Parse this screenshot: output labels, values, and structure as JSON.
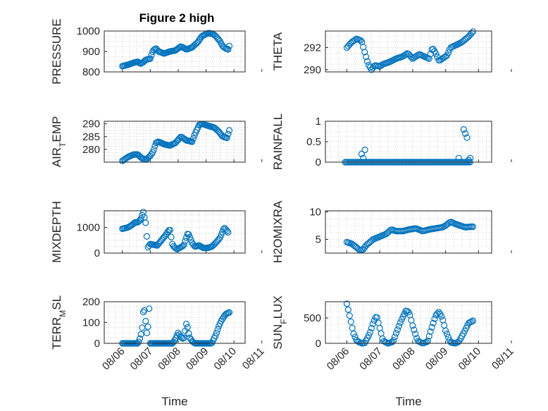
{
  "figure": {
    "title": "Figure 2 high"
  },
  "chart_data": [
    {
      "type": "scatter",
      "title": "Figure 2 high",
      "ylabel": "PRESSURE",
      "xlabel": "",
      "ylim": [
        800,
        1000
      ],
      "yticks": [
        800,
        900,
        1000
      ],
      "x_tick_labels": [
        "08/06",
        "08/07",
        "08/08",
        "08/09",
        "08/10",
        "08/11"
      ],
      "show_x_tick_labels": false,
      "grid": true,
      "color": "#0072bd",
      "knots": [
        [
          6.0,
          828
        ],
        [
          6.2,
          835
        ],
        [
          6.4,
          845
        ],
        [
          6.55,
          850
        ],
        [
          6.65,
          840
        ],
        [
          6.75,
          848
        ],
        [
          6.85,
          860
        ],
        [
          7.0,
          865
        ],
        [
          7.1,
          905
        ],
        [
          7.2,
          915
        ],
        [
          7.3,
          900
        ],
        [
          7.5,
          890
        ],
        [
          7.7,
          900
        ],
        [
          7.9,
          905
        ],
        [
          8.1,
          925
        ],
        [
          8.3,
          910
        ],
        [
          8.5,
          920
        ],
        [
          8.7,
          945
        ],
        [
          8.85,
          975
        ],
        [
          9.0,
          985
        ],
        [
          9.1,
          990
        ],
        [
          9.25,
          985
        ],
        [
          9.35,
          975
        ],
        [
          9.5,
          950
        ],
        [
          9.6,
          925
        ],
        [
          9.7,
          915
        ],
        [
          9.8,
          910
        ],
        [
          9.85,
          935
        ]
      ]
    },
    {
      "type": "scatter",
      "ylabel": "THETA",
      "xlabel": "",
      "ylim": [
        289.8,
        293.5
      ],
      "yticks": [
        290,
        292
      ],
      "x_tick_labels": [
        "08/06",
        "08/07",
        "08/08",
        "08/09",
        "08/10",
        "08/11"
      ],
      "show_x_tick_labels": false,
      "grid": true,
      "color": "#0072bd",
      "knots": [
        [
          6.0,
          292.0
        ],
        [
          6.15,
          292.5
        ],
        [
          6.3,
          292.8
        ],
        [
          6.45,
          292.6
        ],
        [
          6.55,
          291.5
        ],
        [
          6.65,
          290.5
        ],
        [
          6.75,
          290.0
        ],
        [
          6.85,
          290.4
        ],
        [
          7.0,
          290.3
        ],
        [
          7.1,
          290.5
        ],
        [
          7.3,
          290.7
        ],
        [
          7.5,
          291.0
        ],
        [
          7.7,
          291.2
        ],
        [
          7.85,
          291.5
        ],
        [
          8.0,
          291.0
        ],
        [
          8.2,
          291.4
        ],
        [
          8.35,
          291.2
        ],
        [
          8.5,
          291.0
        ],
        [
          8.6,
          292.0
        ],
        [
          8.7,
          291.5
        ],
        [
          8.8,
          290.8
        ],
        [
          8.9,
          291.0
        ],
        [
          9.05,
          291.3
        ],
        [
          9.15,
          292.0
        ],
        [
          9.3,
          292.2
        ],
        [
          9.5,
          292.5
        ],
        [
          9.7,
          293.0
        ],
        [
          9.85,
          293.5
        ]
      ]
    },
    {
      "type": "scatter",
      "ylabel": "AIR_TEMP",
      "ylabel_parts": [
        "AIR",
        "T",
        "EMP"
      ],
      "xlabel": "",
      "ylim": [
        275,
        291
      ],
      "yticks": [
        280,
        285,
        290
      ],
      "x_tick_labels": [
        "08/06",
        "08/07",
        "08/08",
        "08/09",
        "08/10",
        "08/11"
      ],
      "show_x_tick_labels": false,
      "grid": true,
      "color": "#0072bd",
      "knots": [
        [
          6.0,
          275.5
        ],
        [
          6.2,
          277.0
        ],
        [
          6.4,
          278.0
        ],
        [
          6.55,
          278.0
        ],
        [
          6.7,
          276.5
        ],
        [
          6.85,
          276.0
        ],
        [
          7.0,
          277.5
        ],
        [
          7.1,
          279.0
        ],
        [
          7.2,
          282.5
        ],
        [
          7.3,
          283.0
        ],
        [
          7.5,
          282.0
        ],
        [
          7.7,
          281.5
        ],
        [
          7.9,
          282.5
        ],
        [
          8.1,
          285.0
        ],
        [
          8.3,
          283.5
        ],
        [
          8.5,
          283.0
        ],
        [
          8.6,
          286.0
        ],
        [
          8.75,
          289.5
        ],
        [
          8.85,
          290.0
        ],
        [
          9.0,
          289.5
        ],
        [
          9.15,
          289.0
        ],
        [
          9.3,
          288.5
        ],
        [
          9.45,
          287.0
        ],
        [
          9.6,
          285.0
        ],
        [
          9.75,
          284.5
        ],
        [
          9.85,
          288.0
        ]
      ]
    },
    {
      "type": "scatter",
      "ylabel": "RAINFALL",
      "xlabel": "",
      "ylim": [
        0,
        1
      ],
      "yticks": [
        0,
        0.5,
        1
      ],
      "x_tick_labels": [
        "08/06",
        "08/07",
        "08/08",
        "08/09",
        "08/10",
        "08/11"
      ],
      "show_x_tick_labels": false,
      "grid": true,
      "color": "#0072bd",
      "baseline_range": [
        5.95,
        9.75
      ],
      "baseline_value": 0,
      "spikes": [
        [
          6.45,
          0.2
        ],
        [
          6.5,
          0.1
        ],
        [
          6.55,
          0.3
        ],
        [
          9.4,
          0.1
        ],
        [
          9.55,
          0.8
        ],
        [
          9.6,
          0.7
        ],
        [
          9.65,
          0.6
        ],
        [
          9.7,
          0.05
        ],
        [
          9.75,
          0.1
        ]
      ]
    },
    {
      "type": "scatter",
      "ylabel": "MIXDEPTH",
      "xlabel": "",
      "ylim": [
        0,
        1650
      ],
      "yticks": [
        0,
        1000
      ],
      "x_tick_labels": [
        "08/06",
        "08/07",
        "08/08",
        "08/09",
        "08/10",
        "08/11"
      ],
      "show_x_tick_labels": false,
      "grid": true,
      "color": "#0072bd",
      "knots": [
        [
          6.0,
          950
        ],
        [
          6.2,
          1000
        ],
        [
          6.35,
          1100
        ],
        [
          6.45,
          1200
        ],
        [
          6.55,
          1200
        ],
        [
          6.65,
          1300
        ],
        [
          6.75,
          1600
        ],
        [
          6.85,
          1100
        ],
        [
          6.9,
          200
        ],
        [
          7.0,
          350
        ],
        [
          7.1,
          330
        ],
        [
          7.25,
          300
        ],
        [
          7.4,
          500
        ],
        [
          7.55,
          700
        ],
        [
          7.7,
          950
        ],
        [
          7.8,
          300
        ],
        [
          7.95,
          150
        ],
        [
          8.05,
          200
        ],
        [
          8.2,
          300
        ],
        [
          8.35,
          800
        ],
        [
          8.5,
          400
        ],
        [
          8.6,
          250
        ],
        [
          8.75,
          300
        ],
        [
          8.9,
          200
        ],
        [
          9.05,
          200
        ],
        [
          9.2,
          250
        ],
        [
          9.35,
          400
        ],
        [
          9.5,
          600
        ],
        [
          9.65,
          1000
        ],
        [
          9.8,
          800
        ]
      ]
    },
    {
      "type": "scatter",
      "ylabel": "H2OMIXRA",
      "xlabel": "",
      "ylim": [
        2.5,
        10.2
      ],
      "yticks": [
        5,
        10
      ],
      "x_tick_labels": [
        "08/06",
        "08/07",
        "08/08",
        "08/09",
        "08/10",
        "08/11"
      ],
      "show_x_tick_labels": false,
      "grid": true,
      "color": "#0072bd",
      "knots": [
        [
          6.0,
          4.5
        ],
        [
          6.15,
          4.2
        ],
        [
          6.3,
          3.5
        ],
        [
          6.4,
          3.0
        ],
        [
          6.5,
          3.2
        ],
        [
          6.6,
          4.0
        ],
        [
          6.7,
          4.5
        ],
        [
          6.8,
          5.0
        ],
        [
          7.0,
          5.5
        ],
        [
          7.2,
          6.0
        ],
        [
          7.35,
          6.8
        ],
        [
          7.5,
          6.5
        ],
        [
          7.7,
          6.5
        ],
        [
          7.9,
          6.8
        ],
        [
          8.1,
          7.0
        ],
        [
          8.3,
          6.5
        ],
        [
          8.5,
          6.8
        ],
        [
          8.7,
          7.0
        ],
        [
          8.9,
          7.2
        ],
        [
          9.0,
          7.5
        ],
        [
          9.15,
          8.2
        ],
        [
          9.3,
          7.8
        ],
        [
          9.45,
          7.5
        ],
        [
          9.6,
          7.2
        ],
        [
          9.75,
          7.3
        ],
        [
          9.85,
          7.3
        ]
      ]
    },
    {
      "type": "scatter",
      "ylabel": "TERR_MSL",
      "ylabel_parts": [
        "TERR",
        "M",
        "SL"
      ],
      "xlabel": "Time",
      "ylim": [
        0,
        200
      ],
      "yticks": [
        0,
        100,
        200
      ],
      "x_tick_labels": [
        "08/06",
        "08/07",
        "08/08",
        "08/09",
        "08/10",
        "08/11"
      ],
      "show_x_tick_labels": true,
      "grid": true,
      "color": "#0072bd",
      "knots": [
        [
          6.0,
          0
        ],
        [
          6.3,
          0
        ],
        [
          6.55,
          0
        ],
        [
          6.6,
          10
        ],
        [
          6.7,
          60
        ],
        [
          6.75,
          150
        ],
        [
          6.8,
          160
        ],
        [
          6.85,
          80
        ],
        [
          6.9,
          20
        ],
        [
          6.95,
          200
        ],
        [
          7.0,
          0
        ],
        [
          7.5,
          0
        ],
        [
          7.8,
          0
        ],
        [
          7.9,
          20
        ],
        [
          8.0,
          50
        ],
        [
          8.1,
          30
        ],
        [
          8.2,
          20
        ],
        [
          8.3,
          100
        ],
        [
          8.4,
          30
        ],
        [
          8.5,
          10
        ],
        [
          8.6,
          0
        ],
        [
          8.8,
          0
        ],
        [
          9.0,
          0
        ],
        [
          9.2,
          0
        ],
        [
          9.35,
          40
        ],
        [
          9.45,
          80
        ],
        [
          9.55,
          110
        ],
        [
          9.7,
          140
        ],
        [
          9.85,
          150
        ]
      ]
    },
    {
      "type": "scatter",
      "ylabel": "SUN_FLUX",
      "ylabel_parts": [
        "SUN",
        "F",
        "LUX"
      ],
      "xlabel": "Time",
      "ylim": [
        0,
        820
      ],
      "yticks": [
        0,
        500
      ],
      "x_tick_labels": [
        "08/06",
        "08/07",
        "08/08",
        "08/09",
        "08/10",
        "08/11"
      ],
      "show_x_tick_labels": true,
      "grid": true,
      "color": "#0072bd",
      "knots": [
        [
          6.0,
          780
        ],
        [
          6.1,
          500
        ],
        [
          6.2,
          200
        ],
        [
          6.3,
          50
        ],
        [
          6.45,
          0
        ],
        [
          6.55,
          10
        ],
        [
          6.7,
          200
        ],
        [
          6.8,
          400
        ],
        [
          6.9,
          550
        ],
        [
          7.0,
          300
        ],
        [
          7.1,
          50
        ],
        [
          7.25,
          0
        ],
        [
          7.4,
          30
        ],
        [
          7.5,
          200
        ],
        [
          7.65,
          450
        ],
        [
          7.8,
          650
        ],
        [
          7.9,
          600
        ],
        [
          8.0,
          350
        ],
        [
          8.15,
          50
        ],
        [
          8.3,
          0
        ],
        [
          8.45,
          30
        ],
        [
          8.55,
          250
        ],
        [
          8.7,
          550
        ],
        [
          8.8,
          620
        ],
        [
          8.9,
          500
        ],
        [
          9.0,
          250
        ],
        [
          9.15,
          20
        ],
        [
          9.3,
          0
        ],
        [
          9.4,
          30
        ],
        [
          9.55,
          200
        ],
        [
          9.7,
          400
        ],
        [
          9.85,
          450
        ]
      ]
    }
  ]
}
